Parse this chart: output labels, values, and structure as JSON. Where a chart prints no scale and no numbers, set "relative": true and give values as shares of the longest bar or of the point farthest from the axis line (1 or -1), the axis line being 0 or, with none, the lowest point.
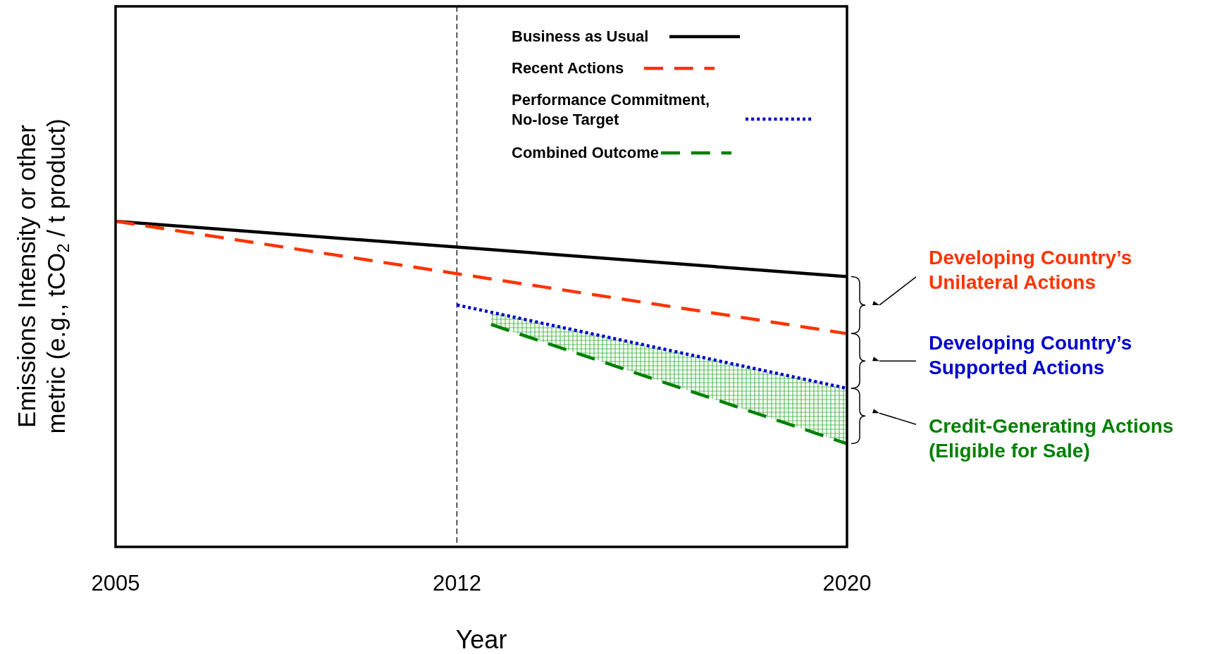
{
  "chart_data": {
    "type": "line",
    "relative": true,
    "xlabel": "Year",
    "ylabel": "Emissions Intensity or other\nmetric (e.g., tCO$_{2}$ / t product)",
    "xlim": [
      2005,
      2020
    ],
    "xticks": [
      2005,
      2012,
      2020
    ],
    "grid": false,
    "legend": "top right",
    "marker": "none",
    "series": [
      {
        "name": "Business as Usual",
        "color": "#000000",
        "line_style": "solid",
        "x": [
          2005,
          2020
        ],
        "values": [
          1,
          0.83
        ]
      },
      {
        "name": "Recent Actions",
        "color": "#ff3300",
        "line_style": "dashed",
        "x": [
          2005,
          2020
        ],
        "values": [
          1,
          0.655
        ]
      },
      {
        "name": "Performance Commitment,\nNo-lose Target",
        "color": "#0000cc",
        "line_style": "dotted",
        "x": [
          2012,
          2020
        ],
        "values": [
          0.743,
          0.487
        ]
      },
      {
        "name": "Combined Outcome",
        "color": "#008000",
        "line_style": "dashed",
        "x": [
          2012.7,
          2020
        ],
        "values": [
          0.683,
          0.317
        ],
        "lower": [
          0.683,
          0.317
        ],
        "upper": [
          0.721,
          0.487
        ]
      }
    ],
    "ref_lines": [
      {
        "axis": "x",
        "value": 2012,
        "color": "#000000",
        "line_style": "dashed"
      }
    ],
    "annotations": [
      "Developing Country’s\nUnilateral Actions",
      "Developing Country’s\nSupported Actions",
      "Credit-Generating Actions\n(Eligible for Sale)"
    ]
  }
}
